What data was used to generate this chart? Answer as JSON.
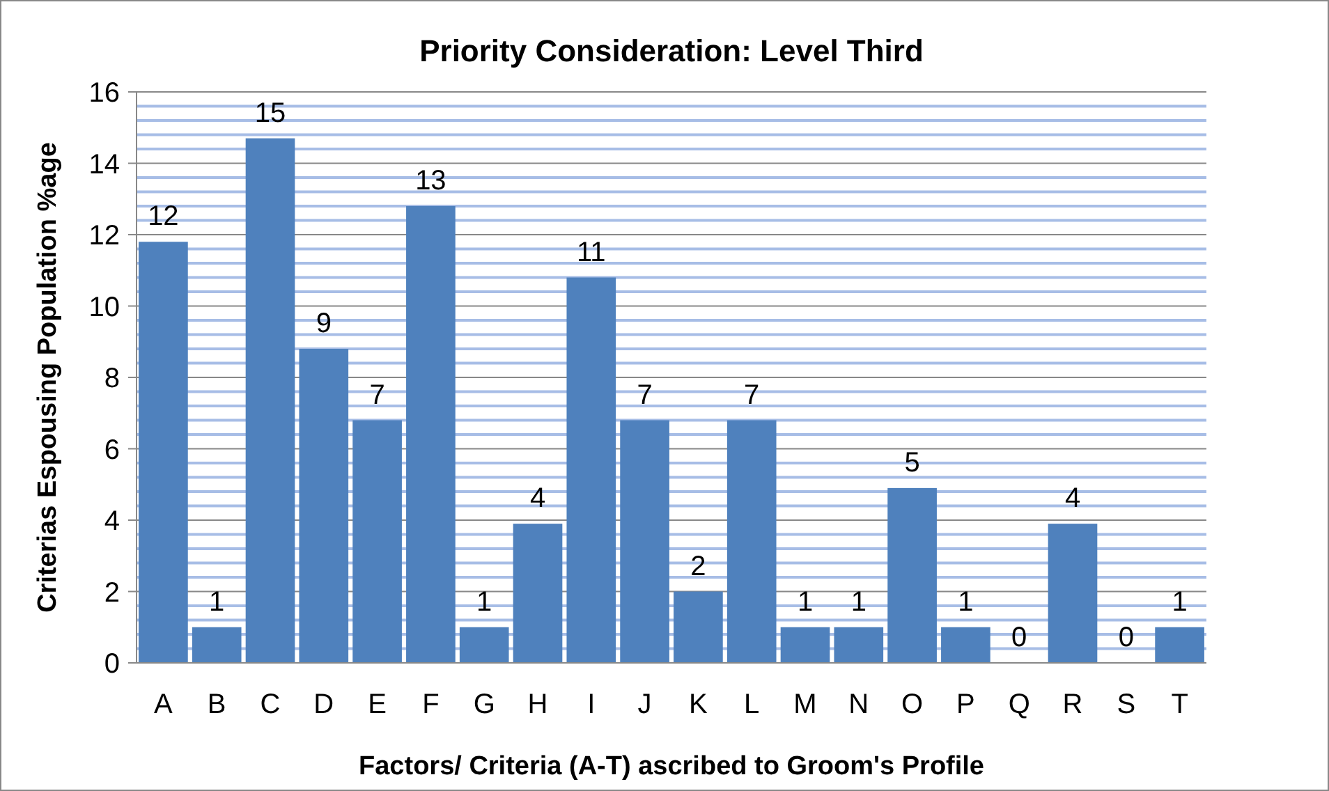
{
  "chart_data": {
    "type": "bar",
    "title": "Priority Consideration:  Level Third",
    "xlabel": "Factors/ Criteria (A-T) ascribed to Groom's Profile",
    "ylabel": "Criterias Espousing Population  %age",
    "categories": [
      "A",
      "B",
      "C",
      "D",
      "E",
      "F",
      "G",
      "H",
      "I",
      "J",
      "K",
      "L",
      "M",
      "N",
      "O",
      "P",
      "Q",
      "R",
      "S",
      "T"
    ],
    "values": [
      11.8,
      1,
      14.7,
      8.8,
      6.8,
      12.8,
      1,
      3.9,
      10.8,
      6.8,
      2.0,
      6.8,
      1,
      1,
      4.9,
      1,
      0,
      3.9,
      0,
      1
    ],
    "value_labels": [
      "12",
      "1",
      "15",
      "9",
      "7",
      "13",
      "1",
      "4",
      "11",
      "7",
      "2",
      "7",
      "1",
      "1",
      "5",
      "1",
      "0",
      "4",
      "0",
      "1"
    ],
    "color": "#4f81bd",
    "ylim": [
      0,
      16
    ],
    "yticks": [
      0,
      {
        "value": 0.4,
        "label": null
      },
      {
        "value": 0.8,
        "label": null
      },
      {
        "value": 1.2,
        "label": null
      },
      {
        "value": 1.6,
        "label": null
      },
      2,
      {
        "value": 2.4,
        "label": null
      },
      {
        "value": 2.8,
        "label": null
      },
      {
        "value": 3.2,
        "label": null
      },
      {
        "value": 3.6,
        "label": null
      },
      4,
      {
        "value": 4.4,
        "label": null
      },
      {
        "value": 4.8,
        "label": null
      },
      {
        "value": 5.2,
        "label": null
      },
      {
        "value": 5.6,
        "label": null
      },
      6,
      {
        "value": 6.4,
        "label": null
      },
      {
        "value": 6.8,
        "label": null
      },
      {
        "value": 7.2,
        "label": null
      },
      {
        "value": 7.6,
        "label": null
      },
      8,
      {
        "value": 8.4,
        "label": null
      },
      {
        "value": 8.8,
        "label": null
      },
      {
        "value": 9.2,
        "label": null
      },
      {
        "value": 9.6,
        "label": null
      },
      10,
      {
        "value": 10.4,
        "label": null
      },
      {
        "value": 10.8,
        "label": null
      },
      {
        "value": 11.2,
        "label": null
      },
      {
        "value": 11.6,
        "label": null
      },
      12,
      {
        "value": 12.4,
        "label": null
      },
      {
        "value": 12.8,
        "label": null
      },
      {
        "value": 13.2,
        "label": null
      },
      {
        "value": 13.6,
        "label": null
      },
      14,
      {
        "value": 14.4,
        "label": null
      },
      {
        "value": 14.8,
        "label": null
      },
      {
        "value": 15.2,
        "label": null
      },
      {
        "value": 15.6,
        "label": null
      },
      16
    ],
    "grid": "y"
  }
}
